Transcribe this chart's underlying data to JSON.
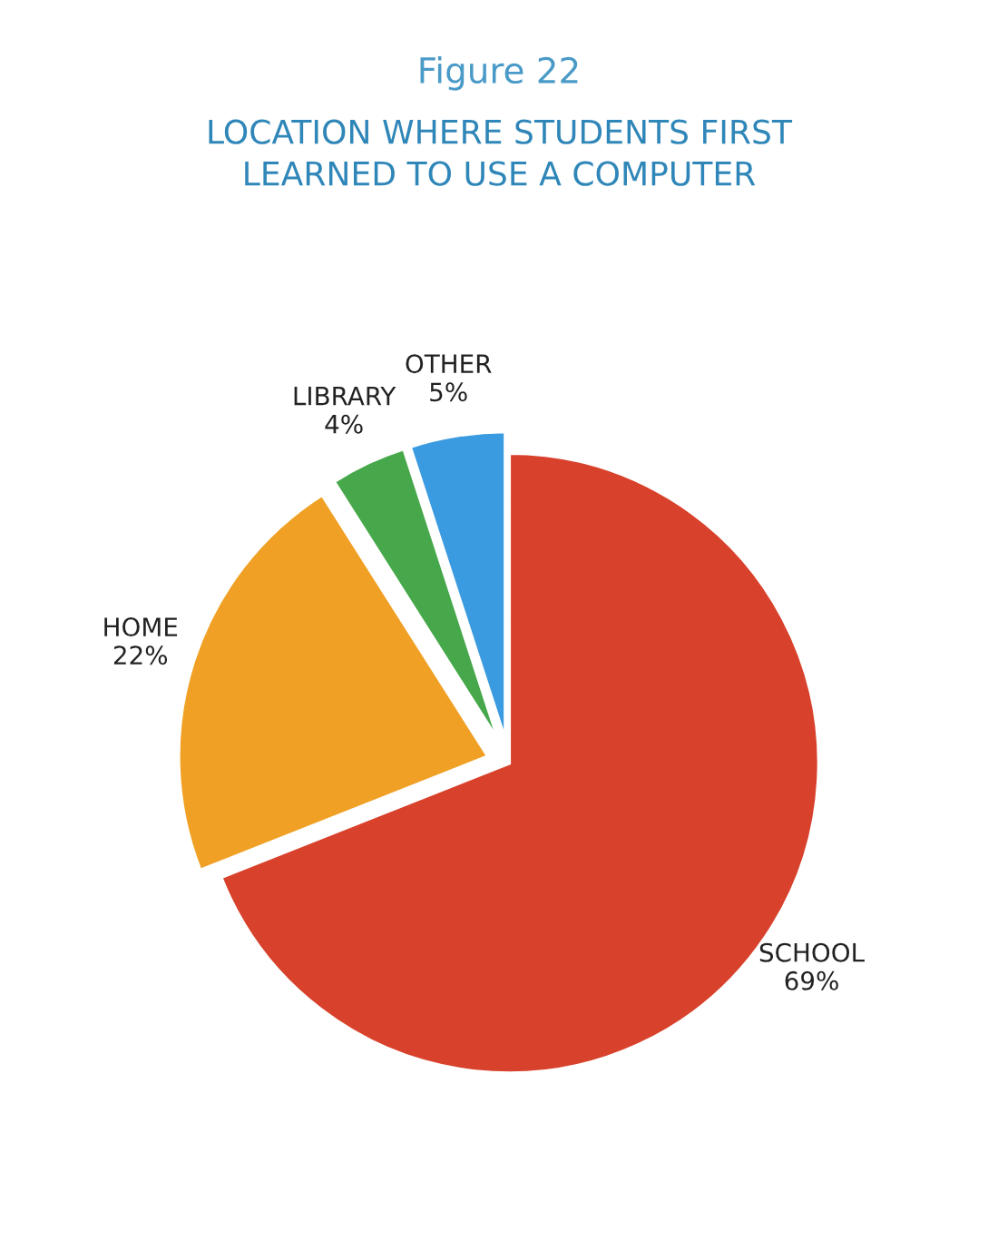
{
  "chart_data": {
    "type": "pie",
    "title": "Figure 22",
    "subtitle": "LOCATION WHERE STUDENTS FIRST\nLEARNED TO USE A COMPUTER",
    "categories": [
      "SCHOOL",
      "HOME",
      "LIBRARY",
      "OTHER"
    ],
    "values": [
      69,
      22,
      4,
      5
    ],
    "value_labels": [
      "69%",
      "22%",
      "4%",
      "5%"
    ],
    "colors": [
      "#d8412b",
      "#f0a125",
      "#46a84a",
      "#3b9be0"
    ]
  }
}
